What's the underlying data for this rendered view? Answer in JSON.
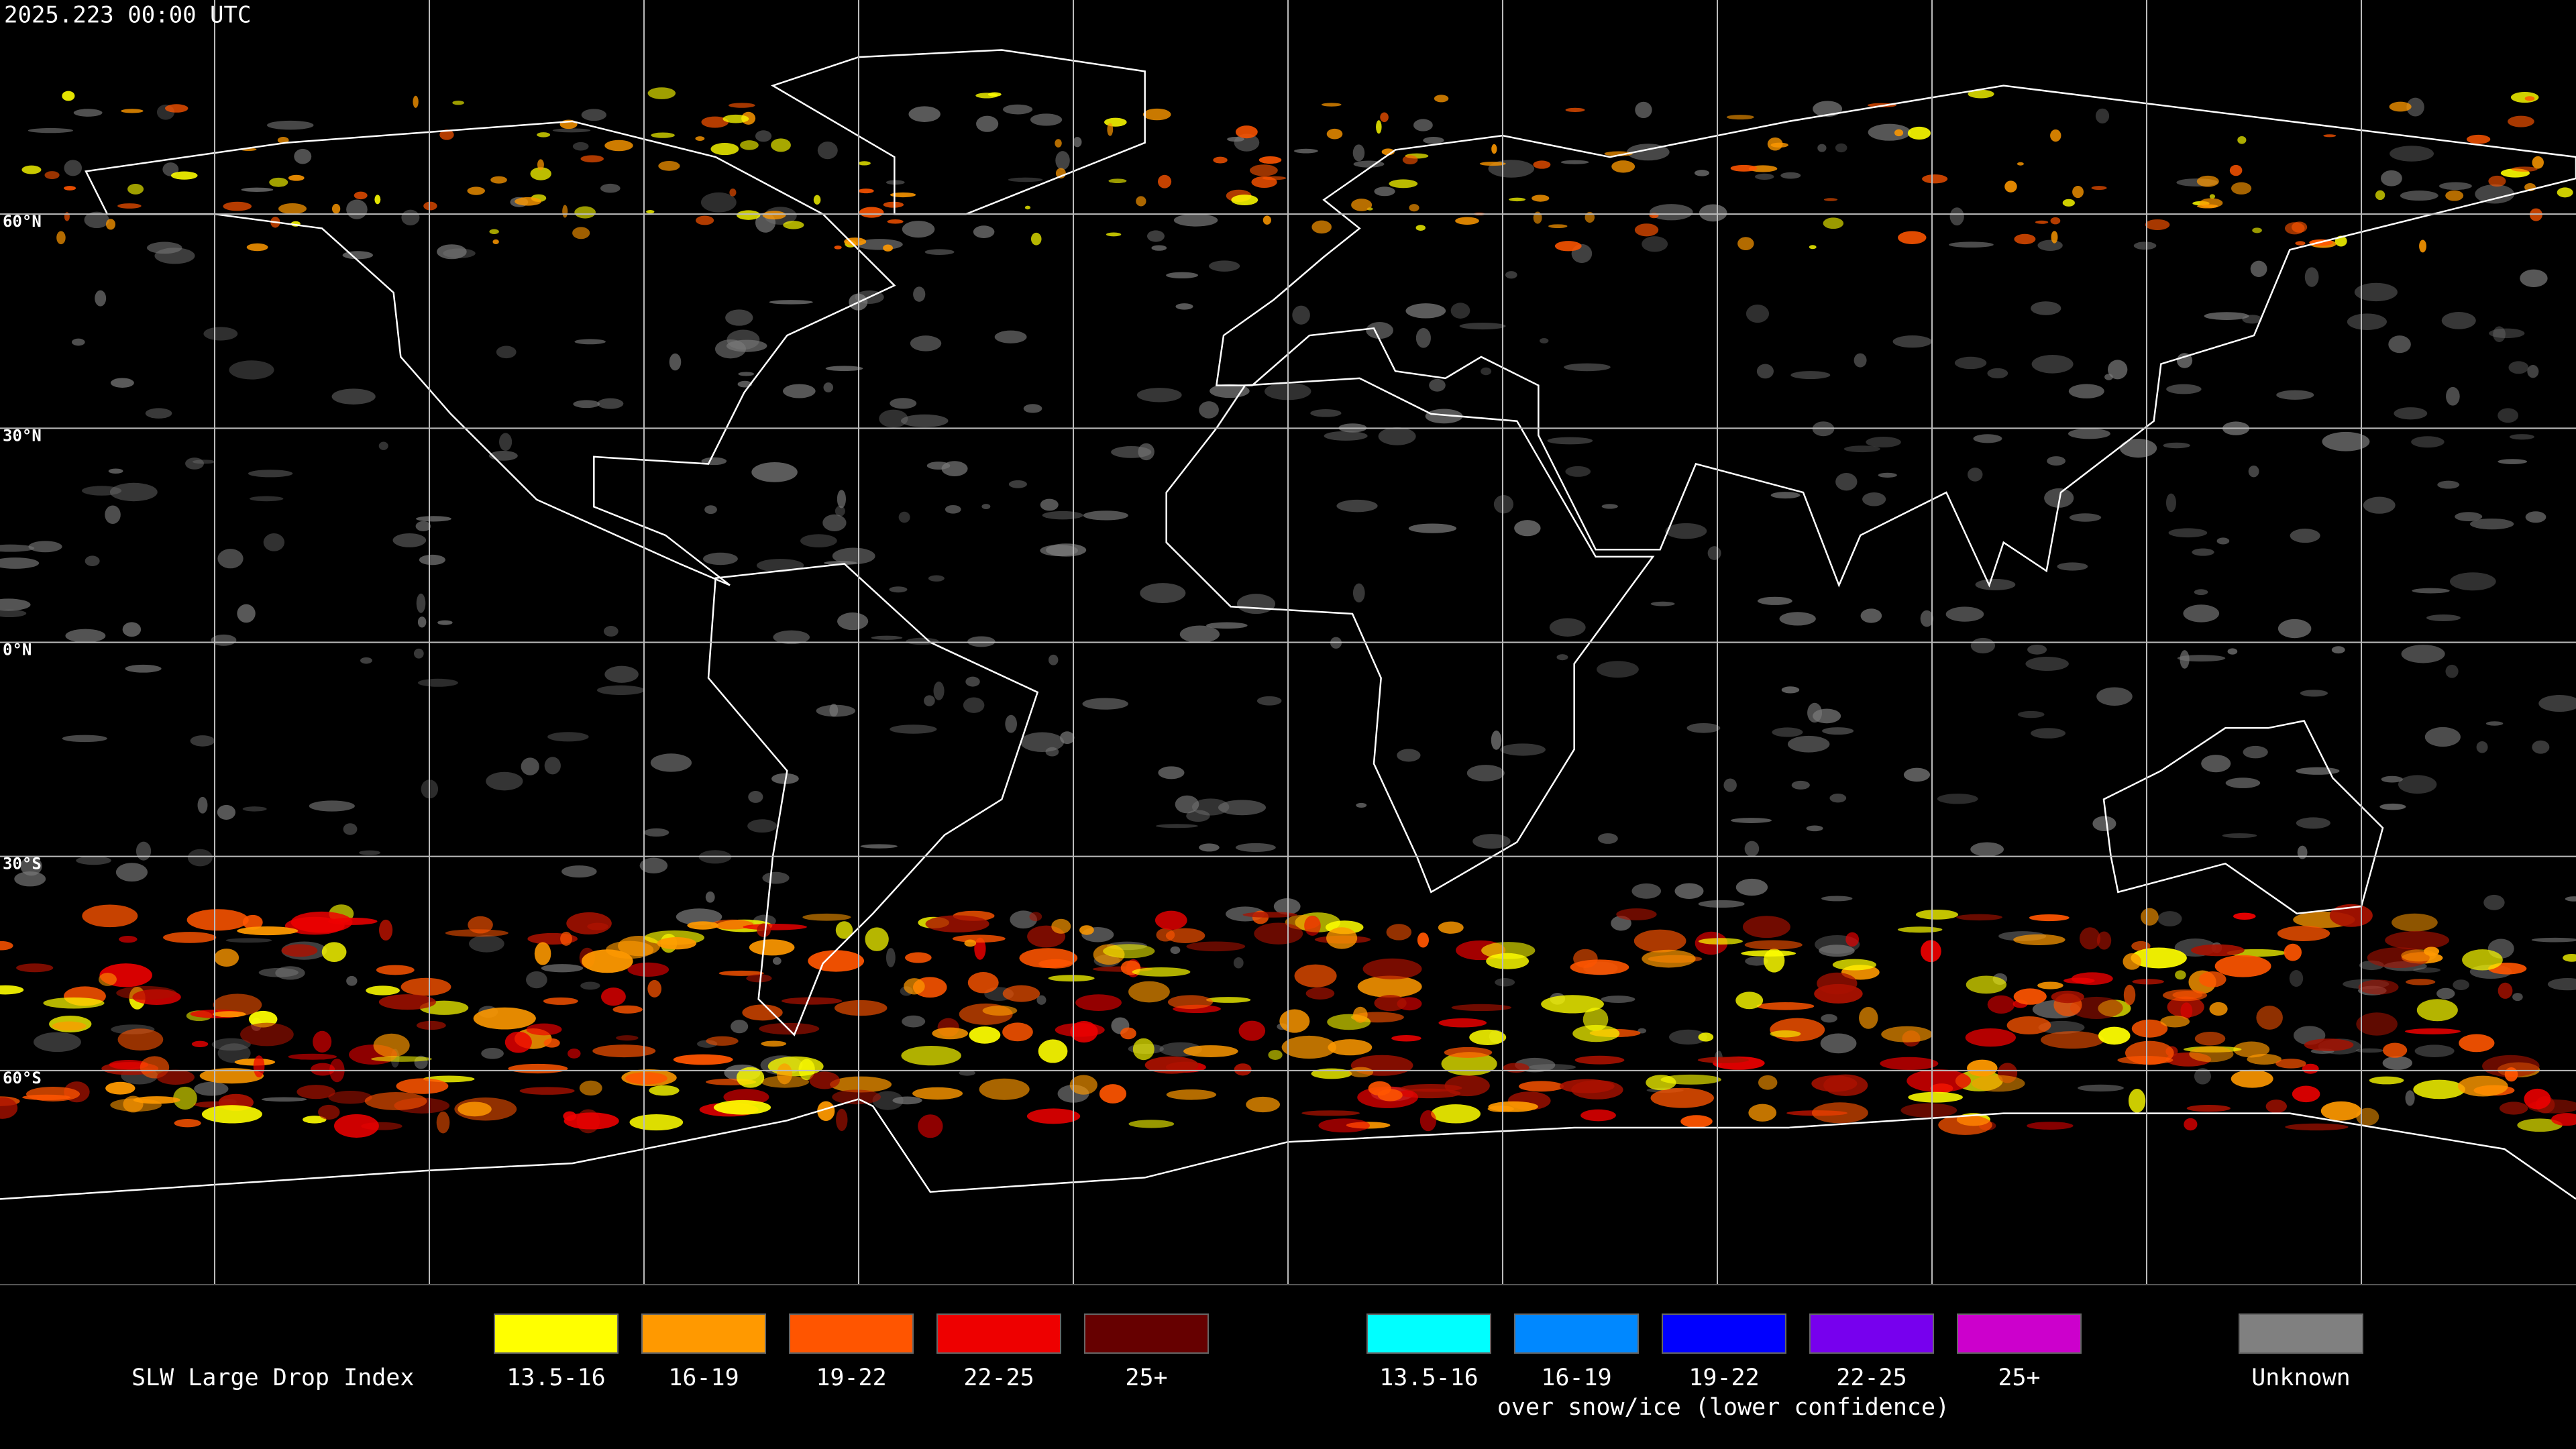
{
  "timestamp": "2025.223 00:00 UTC",
  "latitude_labels": [
    "60°N",
    "30°N",
    "0°N",
    "30°S",
    "60°S"
  ],
  "legend": {
    "title": "SLW Large Drop Index",
    "items": [
      {
        "label": "13.5-16",
        "color": "#ffff00"
      },
      {
        "label": "16-19",
        "color": "#ff9900"
      },
      {
        "label": "19-22",
        "color": "#ff5500"
      },
      {
        "label": "22-25",
        "color": "#ee0000"
      },
      {
        "label": "25+",
        "color": "#660000"
      }
    ],
    "snow_ice_items": [
      {
        "label": "13.5-16",
        "color": "#00ffff"
      },
      {
        "label": "16-19",
        "color": "#0088ff"
      },
      {
        "label": "19-22",
        "color": "#0000ff"
      },
      {
        "label": "22-25",
        "color": "#7700ee"
      },
      {
        "label": "25+",
        "color": "#cc00cc"
      }
    ],
    "snow_ice_caption": "over snow/ice (lower confidence)",
    "unknown": {
      "label": "Unknown",
      "color": "#808080"
    }
  }
}
